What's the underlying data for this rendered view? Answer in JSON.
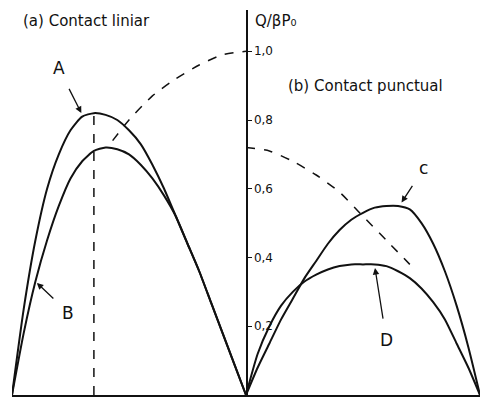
{
  "chart_data": {
    "type": "line",
    "y_label": "Q/βP₀",
    "annotations": [
      "(a) Contact liniar",
      "(b) Contact punctual"
    ],
    "xlim": [
      -1,
      1
    ],
    "ylim": [
      0,
      1.12
    ],
    "yticks": [
      {
        "value": 0.2,
        "label": "0,2"
      },
      {
        "value": 0.4,
        "label": "0,4"
      },
      {
        "value": 0.6,
        "label": "0,6"
      },
      {
        "value": 0.8,
        "label": "0,8"
      },
      {
        "value": 1.0,
        "label": "1,0"
      }
    ],
    "grid": false,
    "tick_labels": "y",
    "color": "#111111",
    "series": [
      {
        "name": "A",
        "line_style": "solid",
        "x": [
          -1,
          -0.95,
          -0.9,
          -0.85,
          -0.8,
          -0.75,
          -0.7,
          -0.65,
          -0.6,
          -0.55,
          -0.5,
          -0.45,
          -0.4,
          -0.35,
          -0.3,
          -0.25,
          -0.2,
          -0.15,
          -0.1,
          -0.05,
          0
        ],
        "values": [
          0,
          0.25,
          0.45,
          0.6,
          0.7,
          0.77,
          0.81,
          0.82,
          0.815,
          0.8,
          0.77,
          0.73,
          0.67,
          0.6,
          0.52,
          0.44,
          0.36,
          0.27,
          0.18,
          0.09,
          0
        ]
      },
      {
        "name": "B",
        "line_style": "solid",
        "x": [
          -1,
          -0.95,
          -0.9,
          -0.85,
          -0.8,
          -0.75,
          -0.7,
          -0.65,
          -0.6,
          -0.55,
          -0.5,
          -0.45,
          -0.4,
          -0.35,
          -0.3,
          -0.25,
          -0.2,
          -0.15,
          -0.1,
          -0.05,
          0
        ],
        "values": [
          0,
          0.18,
          0.33,
          0.45,
          0.55,
          0.63,
          0.68,
          0.71,
          0.72,
          0.715,
          0.7,
          0.67,
          0.63,
          0.58,
          0.52,
          0.44,
          0.36,
          0.27,
          0.18,
          0.09,
          0
        ]
      },
      {
        "line_style": "dashed",
        "x": [
          -0.57,
          -0.5,
          -0.4,
          -0.3,
          -0.2,
          -0.1,
          0
        ],
        "values": [
          0.74,
          0.8,
          0.87,
          0.92,
          0.96,
          0.99,
          1.0
        ]
      },
      {
        "line_style": "dashed",
        "x": [
          -0.65,
          -0.65
        ],
        "values": [
          0,
          0.82
        ]
      },
      {
        "name": "c",
        "line_style": "solid",
        "x": [
          0,
          0.05,
          0.1,
          0.15,
          0.2,
          0.25,
          0.3,
          0.35,
          0.4,
          0.45,
          0.5,
          0.55,
          0.6,
          0.65,
          0.7,
          0.75,
          0.8,
          0.85,
          0.9,
          0.95,
          1
        ],
        "values": [
          0,
          0.08,
          0.15,
          0.22,
          0.28,
          0.34,
          0.39,
          0.44,
          0.48,
          0.51,
          0.53,
          0.545,
          0.55,
          0.55,
          0.54,
          0.5,
          0.44,
          0.36,
          0.26,
          0.14,
          0
        ]
      },
      {
        "name": "D",
        "line_style": "solid",
        "x": [
          0,
          0.05,
          0.1,
          0.15,
          0.2,
          0.25,
          0.3,
          0.35,
          0.4,
          0.45,
          0.5,
          0.55,
          0.6,
          0.65,
          0.7,
          0.75,
          0.8,
          0.85,
          0.9,
          0.95,
          1
        ],
        "values": [
          0,
          0.12,
          0.2,
          0.26,
          0.3,
          0.33,
          0.35,
          0.365,
          0.375,
          0.38,
          0.38,
          0.38,
          0.375,
          0.36,
          0.34,
          0.31,
          0.27,
          0.22,
          0.15,
          0.08,
          0
        ]
      },
      {
        "line_style": "dashed",
        "x": [
          0,
          0.1,
          0.2,
          0.3,
          0.4,
          0.5,
          0.6,
          0.7
        ],
        "values": [
          0.72,
          0.71,
          0.68,
          0.64,
          0.59,
          0.52,
          0.45,
          0.38
        ]
      }
    ]
  }
}
